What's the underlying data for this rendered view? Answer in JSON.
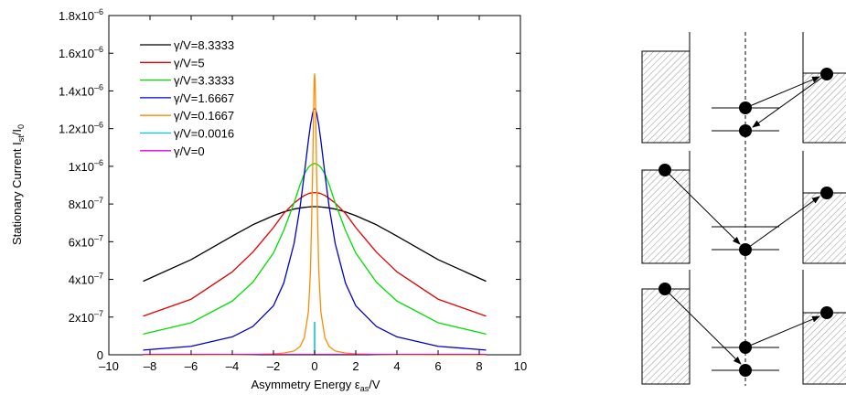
{
  "chart_data": {
    "type": "line",
    "xlabel": "Asymmetry Energy ε",
    "xlabel_sub": "as",
    "xlabel_suffix": "/V",
    "ylabel_prefix": "Stationary Current I",
    "ylabel_sub1": "st",
    "ylabel_mid": "/I",
    "ylabel_sub2": "0",
    "xlim": [
      -10,
      10
    ],
    "ylim": [
      0,
      1.8e-06
    ],
    "xticks": [
      -10,
      -8,
      -6,
      -4,
      -2,
      0,
      2,
      4,
      6,
      8,
      10
    ],
    "xtick_labels": [
      "–10",
      "–8",
      "–6",
      "–4",
      "–2",
      "0",
      "2",
      "4",
      "6",
      "8",
      "10"
    ],
    "yticks": [
      {
        "value": 0,
        "mant": "0",
        "exp": ""
      },
      {
        "value": 2e-07,
        "mant": "2x10",
        "exp": "–7"
      },
      {
        "value": 4e-07,
        "mant": "4x10",
        "exp": "–7"
      },
      {
        "value": 6e-07,
        "mant": "6x10",
        "exp": "–7"
      },
      {
        "value": 8e-07,
        "mant": "8x10",
        "exp": "–7"
      },
      {
        "value": 1e-06,
        "mant": "1x10",
        "exp": "–6"
      },
      {
        "value": 1.2e-06,
        "mant": "1.2x10",
        "exp": "–6"
      },
      {
        "value": 1.4e-06,
        "mant": "1.4x10",
        "exp": "–6"
      },
      {
        "value": 1.6e-06,
        "mant": "1.6x10",
        "exp": "–6"
      },
      {
        "value": 1.8e-06,
        "mant": "1.8x10",
        "exp": "–6"
      }
    ],
    "grid": false,
    "legend_position": "top-left",
    "x": [
      -8.3333,
      -6,
      -4,
      -3,
      -2,
      -1.5,
      -1,
      -0.7,
      -0.5,
      -0.3,
      -0.2,
      -0.1,
      -0.05,
      -0.02,
      0,
      0.02,
      0.05,
      0.1,
      0.2,
      0.3,
      0.5,
      0.7,
      1,
      1.5,
      2,
      3,
      4,
      6,
      8.3333
    ],
    "series": [
      {
        "name": "γ/V=8.3333",
        "color": "#000000",
        "values": [
          3.9e-07,
          5.05e-07,
          6.3e-07,
          6.9e-07,
          7.38e-07,
          7.58e-07,
          7.73e-07,
          7.79e-07,
          7.82e-07,
          7.84e-07,
          7.85e-07,
          7.86e-07,
          7.86e-07,
          7.86e-07,
          7.86e-07,
          7.86e-07,
          7.86e-07,
          7.86e-07,
          7.85e-07,
          7.84e-07,
          7.82e-07,
          7.79e-07,
          7.73e-07,
          7.58e-07,
          7.38e-07,
          6.9e-07,
          6.3e-07,
          5.05e-07,
          3.9e-07
        ]
      },
      {
        "name": "γ/V=5",
        "color": "#e00000",
        "values": [
          2.05e-07,
          2.95e-07,
          4.4e-07,
          5.45e-07,
          6.75e-07,
          7.5e-07,
          8.05e-07,
          8.3e-07,
          8.45e-07,
          8.55e-07,
          8.58e-07,
          8.6e-07,
          8.6e-07,
          8.6e-07,
          8.6e-07,
          8.6e-07,
          8.6e-07,
          8.6e-07,
          8.58e-07,
          8.55e-07,
          8.45e-07,
          8.3e-07,
          8.05e-07,
          7.5e-07,
          6.75e-07,
          5.45e-07,
          4.4e-07,
          2.95e-07,
          2.05e-07
        ]
      },
      {
        "name": "γ/V=3.3333",
        "color": "#00dd00",
        "values": [
          1.1e-07,
          1.7e-07,
          2.85e-07,
          3.85e-07,
          5.4e-07,
          6.6e-07,
          8.05e-07,
          9.05e-07,
          9.6e-07,
          9.95e-07,
          1.005e-06,
          1.012e-06,
          1.014e-06,
          1.015e-06,
          1.015e-06,
          1.015e-06,
          1.014e-06,
          1.012e-06,
          1.005e-06,
          9.95e-07,
          9.6e-07,
          9.05e-07,
          8.05e-07,
          6.6e-07,
          5.4e-07,
          3.85e-07,
          2.85e-07,
          1.7e-07,
          1.1e-07
        ]
      },
      {
        "name": "γ/V=1.6667",
        "color": "#0000cc",
        "values": [
          2.5e-08,
          4.5e-08,
          9.5e-08,
          1.5e-07,
          2.6e-07,
          3.8e-07,
          5.9e-07,
          7.9e-07,
          9.6e-07,
          1.14e-06,
          1.22e-06,
          1.28e-06,
          1.3e-06,
          1.305e-06,
          1.305e-06,
          1.305e-06,
          1.3e-06,
          1.28e-06,
          1.22e-06,
          1.14e-06,
          9.6e-07,
          7.9e-07,
          5.9e-07,
          3.8e-07,
          2.6e-07,
          1.5e-07,
          9.5e-08,
          4.5e-08,
          2.5e-08
        ]
      },
      {
        "name": "γ/V=0.1667",
        "color": "#ff8c00",
        "values": [
          0,
          0,
          1e-09,
          2e-09,
          5e-09,
          9e-09,
          2e-08,
          4.5e-08,
          9e-08,
          2.3e-07,
          4.5e-07,
          9.5e-07,
          1.3e-06,
          1.46e-06,
          1.49e-06,
          1.46e-06,
          1.3e-06,
          9.5e-07,
          4.5e-07,
          2.3e-07,
          9e-08,
          4.5e-08,
          2e-08,
          9e-09,
          5e-09,
          2e-09,
          1e-09,
          0,
          0
        ]
      }
    ],
    "spike_series": [
      {
        "name": "γ/V=0.0016",
        "color": "#00cccc",
        "x": 0,
        "peak": 1.75e-07
      },
      {
        "name": "γ/V=0",
        "color": "#dd00dd",
        "x": 0,
        "peak": 0
      }
    ],
    "legend": [
      "γ/V=8.3333",
      "γ/V=5",
      "γ/V=3.3333",
      "γ/V=1.6667",
      "γ/V=0.1667",
      "γ/V=0.0016",
      "γ/V=0"
    ]
  },
  "diagram": {
    "panels": [
      {
        "left_level": 0.0,
        "electrons": [
          {
            "pos": "right-top"
          },
          {
            "pos": "dot-upper"
          },
          {
            "pos": "dot-lower"
          }
        ]
      },
      {
        "left_level": 1.0,
        "electrons": [
          {
            "pos": "left-top"
          },
          {
            "pos": "dot-lower"
          },
          {
            "pos": "right-top"
          }
        ]
      },
      {
        "left_level": 1.0,
        "electrons": [
          {
            "pos": "left-top"
          },
          {
            "pos": "dot-lower"
          },
          {
            "pos": "dot-upper"
          },
          {
            "pos": "right-top"
          }
        ]
      }
    ]
  }
}
